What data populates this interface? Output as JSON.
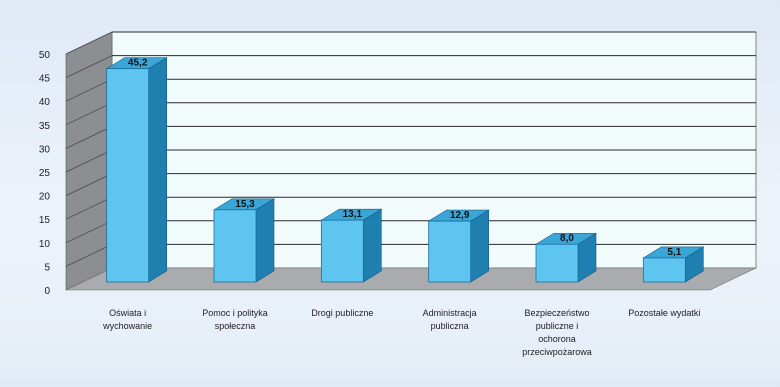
{
  "chart_data": {
    "type": "bar",
    "title": "",
    "xlabel": "",
    "ylabel": "",
    "ylim": [
      0,
      50
    ],
    "yticks": [
      0,
      5,
      10,
      15,
      20,
      25,
      30,
      35,
      40,
      45,
      50
    ],
    "grid": true,
    "legend": "none",
    "categories": [
      [
        "Oświata i",
        "wychowanie"
      ],
      [
        "Pomoc i polityka",
        "społeczna"
      ],
      [
        "Drogi publiczne"
      ],
      [
        "Administracja",
        "publiczna"
      ],
      [
        "Bezpieczeństwo",
        "publiczne i",
        "ochorona",
        "przeciwpożarowa"
      ],
      [
        "Pozostałe wydatki"
      ]
    ],
    "values": [
      45.2,
      15.3,
      13.1,
      12.9,
      8.0,
      5.1
    ],
    "value_labels": [
      "45,2",
      "15,3",
      "13,1",
      "12,9",
      "8,0",
      "5,1"
    ],
    "colors": {
      "bar_front": "#5ec4f0",
      "bar_side": "#1f7fb0",
      "bar_top": "#3aa6d8",
      "plot_back": "#f2fbfc",
      "floor": "#a9abae",
      "left_wall": "#8c8e91",
      "grid": "#2a2a2a"
    }
  }
}
